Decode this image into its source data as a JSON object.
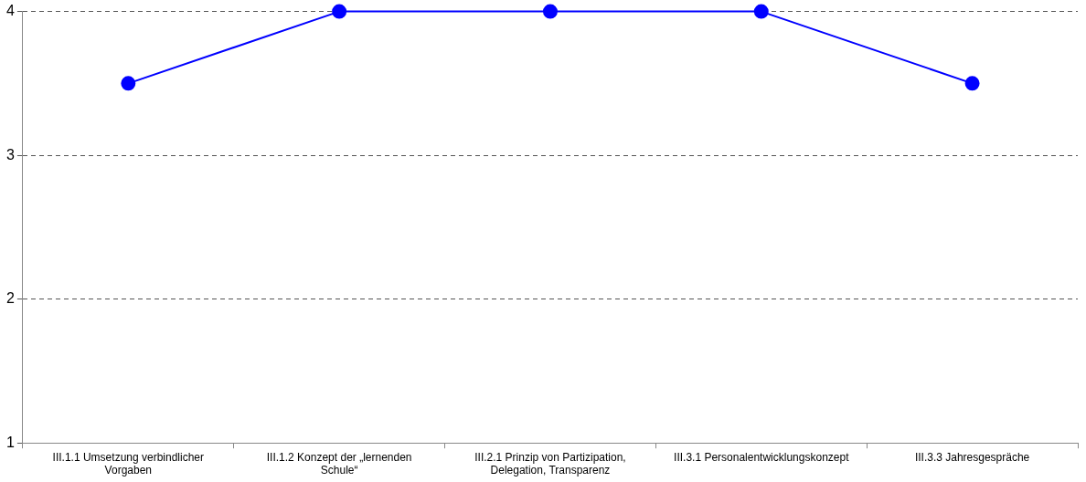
{
  "chart_data": {
    "type": "line",
    "categories": [
      "III.1.1 Umsetzung verbindlicher Vorgaben",
      "III.1.2 Konzept der „lernenden Schule“",
      "III.2.1 Prinzip von Partizipation, Delegation, Transparenz",
      "III.3.1 Personalentwicklungskonzept",
      "III.3.3 Jahresgespräche"
    ],
    "series": [
      {
        "color": "#0000ff",
        "values": [
          3.5,
          4,
          4,
          4,
          3.5
        ]
      }
    ],
    "ylim": [
      1,
      4
    ],
    "yticks": [
      1,
      2,
      3,
      4
    ],
    "grid": "y",
    "legend": false,
    "marker": "circle",
    "line_style": "solid"
  }
}
